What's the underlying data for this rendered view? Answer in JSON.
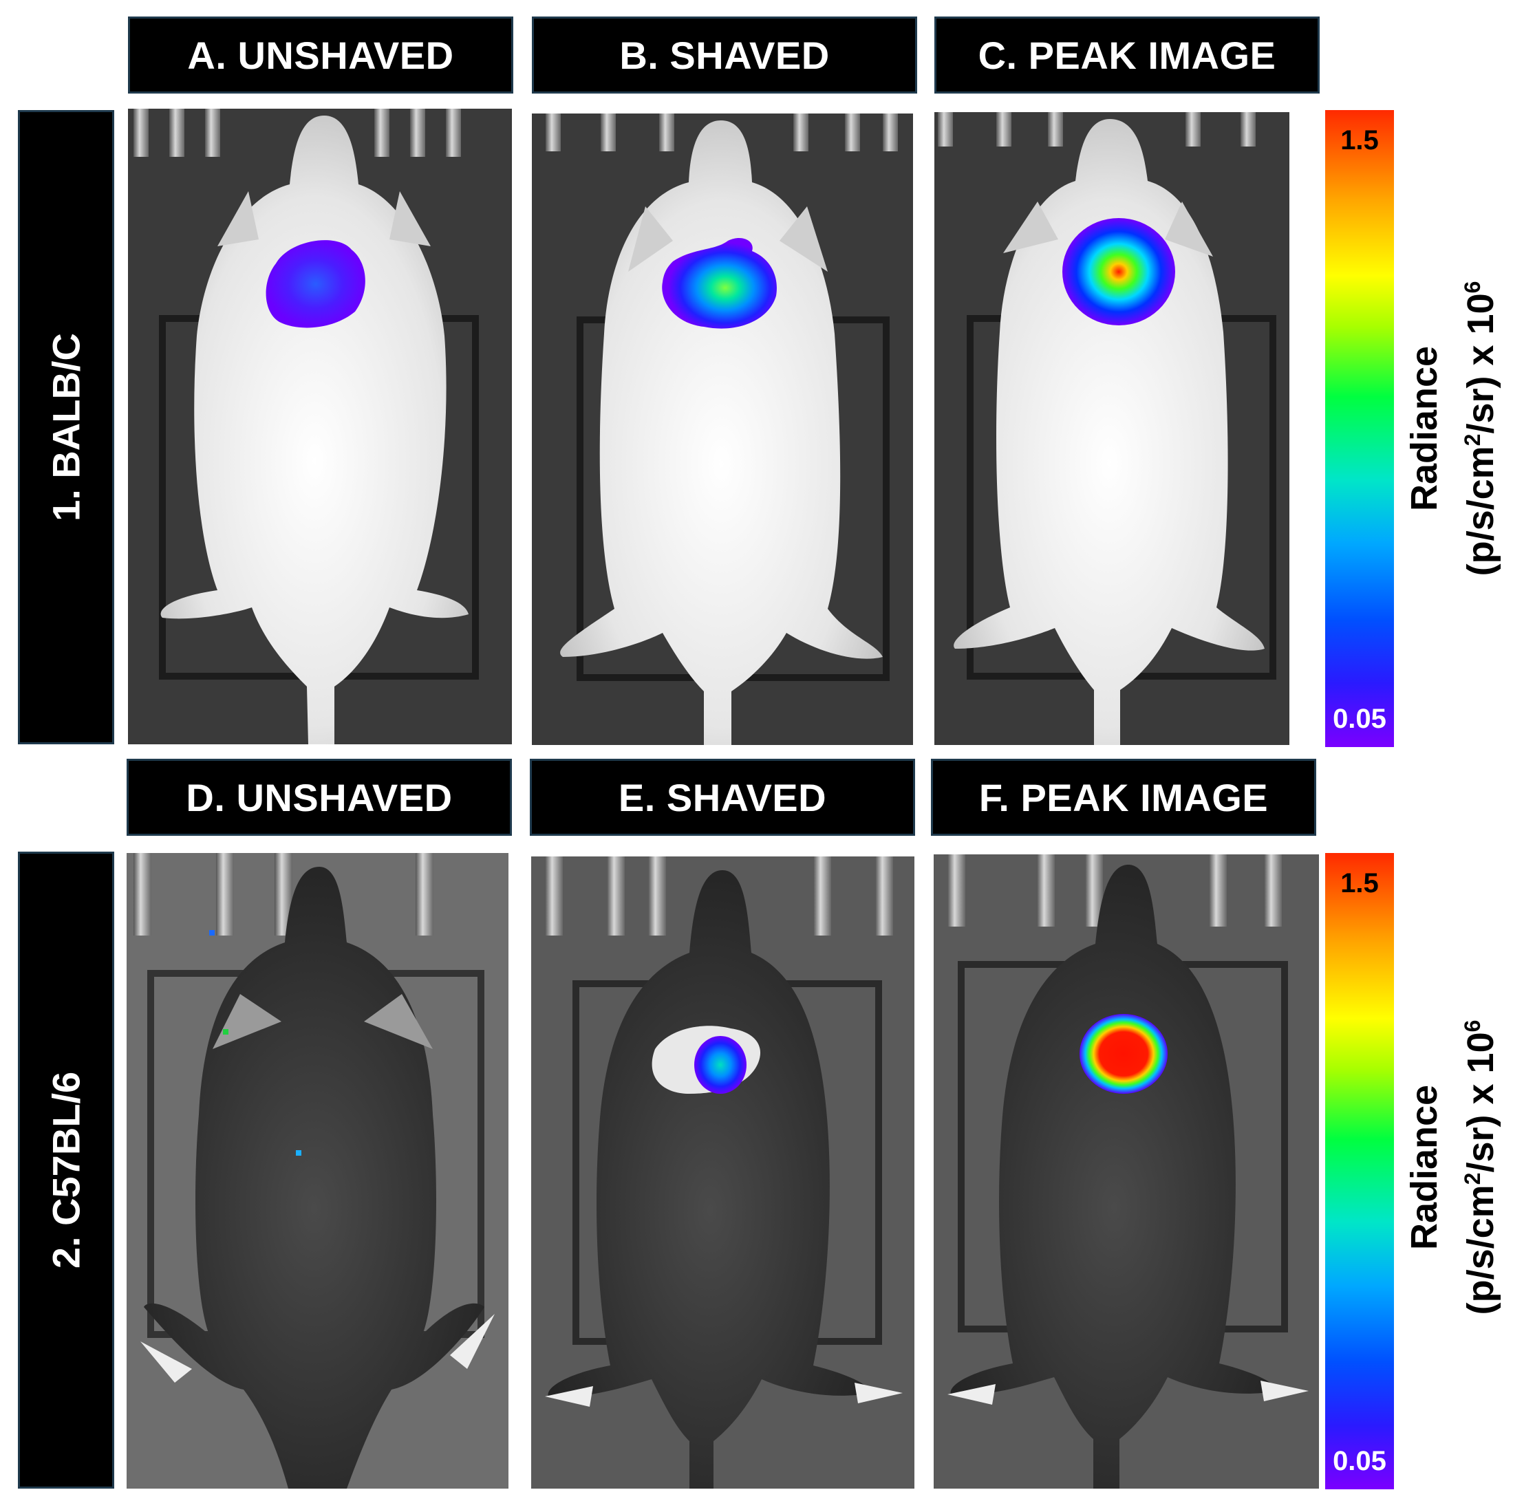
{
  "columns": {
    "a": "A. UNSHAVED",
    "b": "B. SHAVED",
    "c": "C. PEAK IMAGE",
    "d": "D. UNSHAVED",
    "e": "E. SHAVED",
    "f": "F. PEAK IMAGE"
  },
  "rows": {
    "r1": "1. BALB/C",
    "r2": "2. C57BL/6"
  },
  "colorbar": {
    "max": "1.5",
    "min": "0.05"
  },
  "radiance": {
    "line1": "Radiance",
    "line2_a": "(p/s/cm",
    "line2_b": "2",
    "line2_c": "/sr) x 10",
    "line2_d": "6"
  },
  "palette": {
    "hot": "#ff1a00",
    "cold": "#6a00ff",
    "frame": "#1f3a4d"
  }
}
